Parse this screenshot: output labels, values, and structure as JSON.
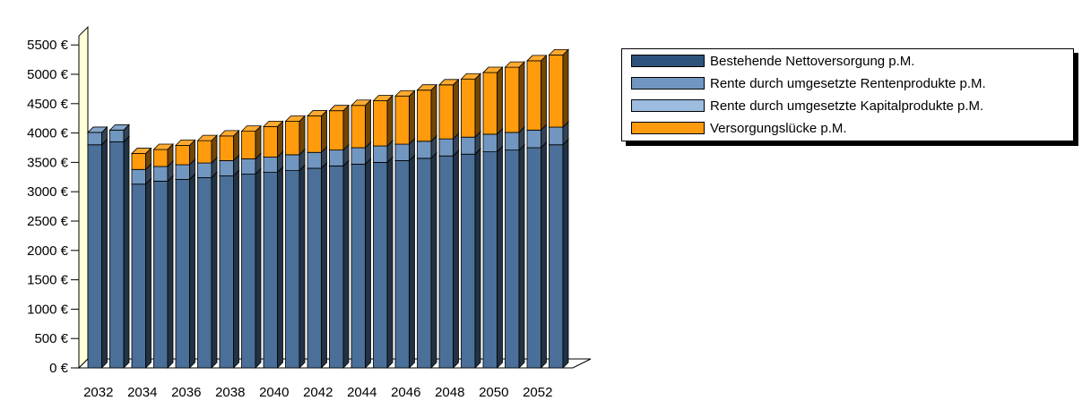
{
  "chart_data": {
    "type": "bar",
    "stacked": true,
    "three_d": true,
    "categories": [
      "2032",
      "2033",
      "2034",
      "2035",
      "2036",
      "2037",
      "2038",
      "2039",
      "2040",
      "2041",
      "2042",
      "2043",
      "2044",
      "2045",
      "2046",
      "2047",
      "2048",
      "2049",
      "2050",
      "2051",
      "2052",
      "2053"
    ],
    "x_tick_labels": [
      "2032",
      "2034",
      "2036",
      "2038",
      "2040",
      "2042",
      "2044",
      "2046",
      "2048",
      "2050",
      "2052"
    ],
    "y_tick_labels": [
      "0 €",
      "500 €",
      "1000 €",
      "1500 €",
      "2000 €",
      "2500 €",
      "3000 €",
      "3500 €",
      "4000 €",
      "4500 €",
      "5000 €",
      "5500 €"
    ],
    "ylim": [
      0,
      5500
    ],
    "legend_position": "right",
    "series": [
      {
        "name": "Bestehende Nettoversorgung p.M.",
        "color": "#4a6f98",
        "values": [
          3800,
          3850,
          3130,
          3180,
          3210,
          3240,
          3270,
          3300,
          3330,
          3360,
          3400,
          3440,
          3470,
          3500,
          3530,
          3570,
          3610,
          3640,
          3680,
          3710,
          3750,
          3800
        ]
      },
      {
        "name": "Rente durch umgesetzte Rentenprodukte p.M.",
        "color": "#7196c0",
        "values": [
          210,
          200,
          250,
          250,
          250,
          250,
          260,
          260,
          260,
          270,
          270,
          270,
          280,
          280,
          280,
          290,
          290,
          290,
          300,
          300,
          300,
          300
        ]
      },
      {
        "name": "Rente durch umgesetzte Kapitalprodukte p.M.",
        "color": "#9cbce0",
        "values": [
          0,
          0,
          0,
          0,
          0,
          0,
          0,
          0,
          0,
          0,
          0,
          0,
          0,
          0,
          0,
          0,
          0,
          0,
          0,
          0,
          0,
          0
        ]
      },
      {
        "name": "Versorgungslücke p.M.",
        "color": "#ff9b0c",
        "values": [
          0,
          0,
          270,
          290,
          330,
          380,
          420,
          470,
          520,
          570,
          620,
          670,
          720,
          770,
          820,
          870,
          920,
          990,
          1050,
          1110,
          1180,
          1230
        ]
      }
    ]
  }
}
